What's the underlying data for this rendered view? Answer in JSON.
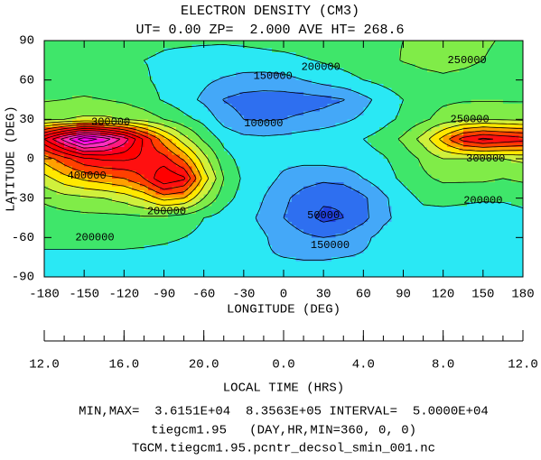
{
  "chart_data": {
    "type": "contour",
    "title": "ELECTRON DENSITY (CM3)",
    "subtitle": "UT= 0.00 ZP=  2.000 AVE HT= 268.6",
    "xlabel": "LONGITUDE (DEG)",
    "ylabel": "LATITUDE (DEG)",
    "x2label": "LOCAL TIME (HRS)",
    "xlim": [
      -180,
      180
    ],
    "ylim": [
      -90,
      90
    ],
    "xticks": [
      -180,
      -150,
      -120,
      -90,
      -60,
      -30,
      0,
      30,
      60,
      90,
      120,
      150,
      180
    ],
    "yticks": [
      -90,
      -60,
      -30,
      0,
      30,
      60,
      90
    ],
    "x2ticks": [
      "12.0",
      "16.0",
      "20.0",
      "0.0",
      "4.0",
      "8.0",
      "12.0"
    ],
    "footer": [
      "MIN,MAX=  3.6151E+04  8.3563E+05 INTERVAL=  5.0000E+04",
      "tiegcm1.95   (DAY,HR,MIN=360, 0, 0)",
      "TGCM.tiegcm1.95.pcntr_decsol_smin_001.nc"
    ],
    "levels": [
      50000,
      100000,
      150000,
      200000,
      250000,
      300000,
      350000,
      400000,
      450000,
      500000,
      550000,
      600000,
      650000,
      700000,
      750000,
      800000
    ],
    "colors": [
      "#2040e0",
      "#2e6ff0",
      "#44a8f8",
      "#2ae8f4",
      "#3fe66a",
      "#80ec48",
      "#d0f03c",
      "#ffe800",
      "#ffa000",
      "#ff4000",
      "#ff1010",
      "#ff0000",
      "#ff0020",
      "#ff1a80",
      "#ff30c0",
      "#ff00e0",
      "#ff00ff"
    ],
    "x": [
      -180,
      -165,
      -150,
      -135,
      -120,
      -105,
      -90,
      -75,
      -60,
      -45,
      -30,
      -15,
      0,
      15,
      30,
      45,
      60,
      75,
      90,
      105,
      120,
      135,
      150,
      165,
      180
    ],
    "y": [
      90,
      75,
      60,
      45,
      30,
      15,
      0,
      -15,
      -30,
      -45,
      -60,
      -75,
      -90
    ],
    "z": [
      [
        220000,
        220000,
        220000,
        220000,
        215000,
        210000,
        205000,
        205000,
        205000,
        205000,
        210000,
        215000,
        220000,
        225000,
        230000,
        235000,
        240000,
        245000,
        250000,
        255000,
        260000,
        262000,
        258000,
        245000,
        220000
      ],
      [
        215000,
        215000,
        212000,
        210000,
        205000,
        200000,
        195000,
        190000,
        185000,
        180000,
        175000,
        180000,
        185000,
        195000,
        205000,
        215000,
        225000,
        240000,
        252000,
        258000,
        260000,
        258000,
        250000,
        235000,
        215000
      ],
      [
        230000,
        230000,
        228000,
        225000,
        215000,
        205000,
        190000,
        175000,
        160000,
        145000,
        135000,
        130000,
        135000,
        150000,
        170000,
        185000,
        200000,
        215000,
        230000,
        240000,
        245000,
        240000,
        235000,
        232000,
        230000
      ],
      [
        245000,
        250000,
        255000,
        250000,
        240000,
        220000,
        195000,
        170000,
        140000,
        98000,
        80000,
        75000,
        75000,
        78000,
        85000,
        98000,
        135000,
        170000,
        200000,
        225000,
        240000,
        245000,
        245000,
        245000,
        245000
      ],
      [
        290000,
        300000,
        310000,
        310000,
        300000,
        280000,
        250000,
        215000,
        185000,
        130000,
        100000,
        95000,
        100000,
        110000,
        120000,
        140000,
        160000,
        185000,
        210000,
        240000,
        270000,
        290000,
        300000,
        295000,
        290000
      ],
      [
        600000,
        720000,
        835630,
        780000,
        680000,
        540000,
        420000,
        320000,
        240000,
        185000,
        165000,
        160000,
        165000,
        175000,
        185000,
        190000,
        200000,
        220000,
        260000,
        320000,
        420000,
        520000,
        560000,
        540000,
        520000
      ],
      [
        420000,
        480000,
        540000,
        560000,
        560000,
        540000,
        520000,
        440000,
        320000,
        220000,
        180000,
        170000,
        165000,
        165000,
        170000,
        175000,
        180000,
        195000,
        220000,
        260000,
        300000,
        300000,
        300000,
        300000,
        310000
      ],
      [
        330000,
        380000,
        410000,
        430000,
        450000,
        500000,
        600000,
        560000,
        380000,
        250000,
        190000,
        170000,
        140000,
        120000,
        110000,
        120000,
        150000,
        180000,
        210000,
        240000,
        260000,
        260000,
        260000,
        250000,
        260000
      ],
      [
        260000,
        280000,
        290000,
        300000,
        320000,
        360000,
        420000,
        400000,
        300000,
        220000,
        180000,
        150000,
        110000,
        80000,
        60000,
        55000,
        90000,
        140000,
        180000,
        210000,
        215000,
        210000,
        205000,
        205000,
        210000
      ],
      [
        225000,
        230000,
        235000,
        235000,
        235000,
        240000,
        235000,
        220000,
        200000,
        180000,
        165000,
        140000,
        100000,
        70000,
        36151,
        50000,
        85000,
        140000,
        165000,
        180000,
        180000,
        178000,
        178000,
        182000,
        190000
      ],
      [
        215000,
        215000,
        215000,
        215000,
        215000,
        215000,
        210000,
        200000,
        190000,
        180000,
        170000,
        155000,
        130000,
        110000,
        100000,
        110000,
        140000,
        165000,
        175000,
        175000,
        175000,
        175000,
        175000,
        180000,
        200000
      ],
      [
        190000,
        190000,
        190000,
        190000,
        190000,
        185000,
        180000,
        175000,
        170000,
        165000,
        160000,
        155000,
        150000,
        148000,
        148000,
        150000,
        155000,
        160000,
        165000,
        168000,
        170000,
        170000,
        170000,
        175000,
        185000
      ],
      [
        175000,
        175000,
        175000,
        175000,
        175000,
        175000,
        172000,
        170000,
        168000,
        165000,
        165000,
        163000,
        162000,
        162000,
        162000,
        162000,
        165000,
        167000,
        168000,
        170000,
        170000,
        170000,
        170000,
        172000,
        175000
      ]
    ],
    "contour_labels": [
      {
        "value": 300000,
        "x": -130,
        "y": 28
      },
      {
        "value": 400000,
        "x": -148,
        "y": -13
      },
      {
        "value": 200000,
        "x": -142,
        "y": -60
      },
      {
        "value": 200000,
        "x": -88,
        "y": -40
      },
      {
        "value": 150000,
        "x": -8,
        "y": 63
      },
      {
        "value": 200000,
        "x": 28,
        "y": 70
      },
      {
        "value": 100000,
        "x": -15,
        "y": 27
      },
      {
        "value": 50000,
        "x": 30,
        "y": -43
      },
      {
        "value": 150000,
        "x": 35,
        "y": -66
      },
      {
        "value": 250000,
        "x": 138,
        "y": 75
      },
      {
        "value": 250000,
        "x": 140,
        "y": 30
      },
      {
        "value": 300000,
        "x": 152,
        "y": 0
      },
      {
        "value": 200000,
        "x": 150,
        "y": -32
      }
    ]
  }
}
